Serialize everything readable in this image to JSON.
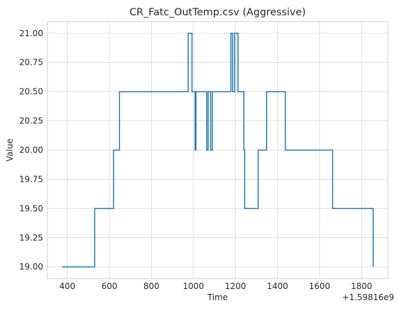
{
  "chart_data": {
    "type": "line",
    "title": "CR_Fatc_OutTemp.csv (Aggressive)",
    "xlabel": "Time",
    "ylabel": "Value",
    "x_offset_label": "+1.59816e9",
    "xlim": [
      305,
      1925
    ],
    "ylim": [
      18.9,
      21.1
    ],
    "x_ticks": [
      400,
      600,
      800,
      1000,
      1200,
      1400,
      1600,
      1800
    ],
    "x_tick_labels": [
      "400",
      "600",
      "800",
      "1000",
      "1200",
      "1400",
      "1600",
      "1800"
    ],
    "y_ticks": [
      19.0,
      19.25,
      19.5,
      19.75,
      20.0,
      20.25,
      20.5,
      20.75,
      21.0
    ],
    "y_tick_labels": [
      "19.00",
      "19.25",
      "19.50",
      "19.75",
      "20.00",
      "20.25",
      "20.50",
      "20.75",
      "21.00"
    ],
    "grid": true,
    "line_color": "#1f77b4",
    "series": [
      {
        "drawstyle": "steps-post",
        "x": [
          375,
          530,
          620,
          648,
          975,
          993,
          1008,
          1012,
          1063,
          1070,
          1082,
          1090,
          1178,
          1186,
          1196,
          1212,
          1240,
          1244,
          1308,
          1348,
          1437,
          1662,
          1855
        ],
        "y": [
          19.0,
          19.5,
          20.0,
          20.5,
          21.0,
          20.5,
          20.0,
          20.5,
          20.0,
          20.5,
          20.0,
          20.5,
          21.0,
          20.5,
          21.0,
          20.5,
          20.0,
          19.5,
          20.0,
          20.5,
          20.0,
          19.5,
          19.0
        ]
      }
    ]
  }
}
